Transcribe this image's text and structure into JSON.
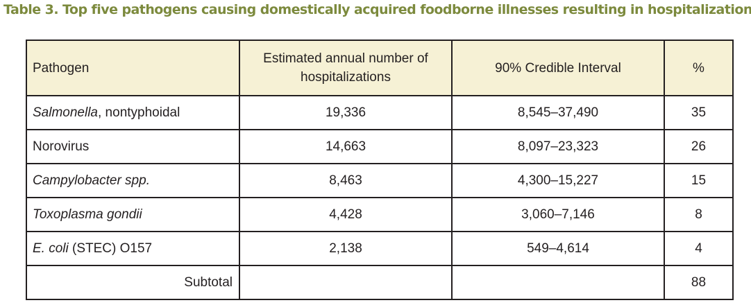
{
  "caption": "Table 3.  Top five pathogens causing domestically acquired foodborne illnesses resulting in hospitalization",
  "colors": {
    "caption": "#7c8a3d",
    "header_background": "#f6f1d5",
    "border": "#231f20",
    "text": "#231f20"
  },
  "table": {
    "headers": {
      "pathogen": "Pathogen",
      "hospitalizations": "Estimated annual number of hospitalizations",
      "interval": "90% Credible Interval",
      "percent": "%"
    },
    "rows": [
      {
        "pathogen_italic": "Salmonella",
        "pathogen_rest": ", nontyphoidal",
        "hospitalizations": "19,336",
        "interval": "8,545–37,490",
        "percent": "35"
      },
      {
        "pathogen_italic": "",
        "pathogen_rest": "Norovirus",
        "hospitalizations": "14,663",
        "interval": "8,097–23,323",
        "percent": "26"
      },
      {
        "pathogen_italic": "Campylobacter spp.",
        "pathogen_rest": "",
        "hospitalizations": "8,463",
        "interval": "4,300–15,227",
        "percent": "15"
      },
      {
        "pathogen_italic": "Toxoplasma gondii",
        "pathogen_rest": "",
        "hospitalizations": "4,428",
        "interval": "3,060–7,146",
        "percent": "8"
      },
      {
        "pathogen_italic": "E. coli",
        "pathogen_rest": " (STEC) O157",
        "hospitalizations": "2,138",
        "interval": "549–4,614",
        "percent": "4"
      }
    ],
    "subtotal": {
      "label": "Subtotal",
      "hospitalizations": "",
      "interval": "",
      "percent": "88"
    }
  }
}
